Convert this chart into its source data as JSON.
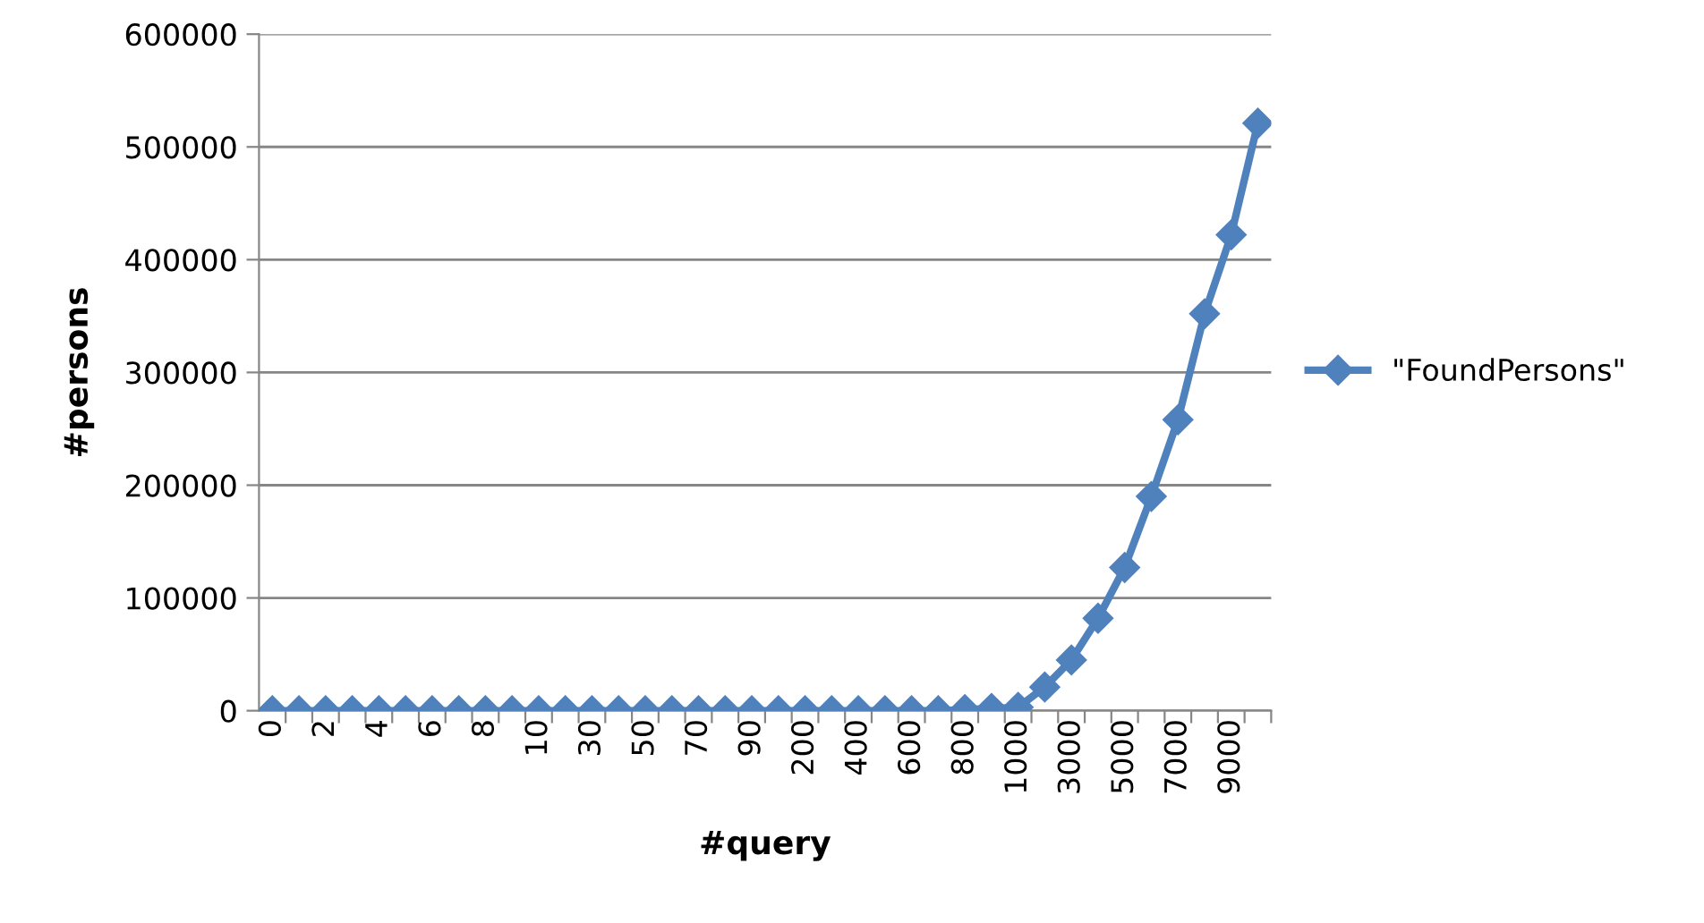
{
  "chart_data": {
    "type": "line",
    "xlabel": "#query",
    "ylabel": "#persons",
    "categories": [
      "0",
      null,
      "2",
      null,
      "4",
      null,
      "6",
      null,
      "8",
      null,
      "10",
      null,
      "30",
      null,
      "50",
      null,
      "70",
      null,
      "90",
      null,
      "200",
      null,
      "400",
      null,
      "600",
      null,
      "800",
      null,
      "1000",
      null,
      "3000",
      null,
      "5000",
      null,
      "7000",
      null,
      "9000",
      null
    ],
    "series": [
      {
        "name": "\"FoundPersons\"",
        "color": "#4f81bd",
        "values": [
          0,
          0,
          0,
          0,
          0,
          0,
          0,
          0,
          0,
          0,
          0,
          0,
          0,
          0,
          0,
          0,
          0,
          0,
          0,
          0,
          0,
          0,
          0,
          0,
          0,
          0,
          1000,
          2000,
          3000,
          21000,
          45000,
          82000,
          127000,
          190000,
          258000,
          352000,
          422000,
          521000
        ]
      }
    ],
    "ylim": [
      0,
      600000
    ],
    "yticks": [
      0,
      100000,
      200000,
      300000,
      400000,
      500000,
      600000
    ],
    "grid": "y",
    "legend": "right",
    "marker": "diamond",
    "line_style": "solid"
  }
}
